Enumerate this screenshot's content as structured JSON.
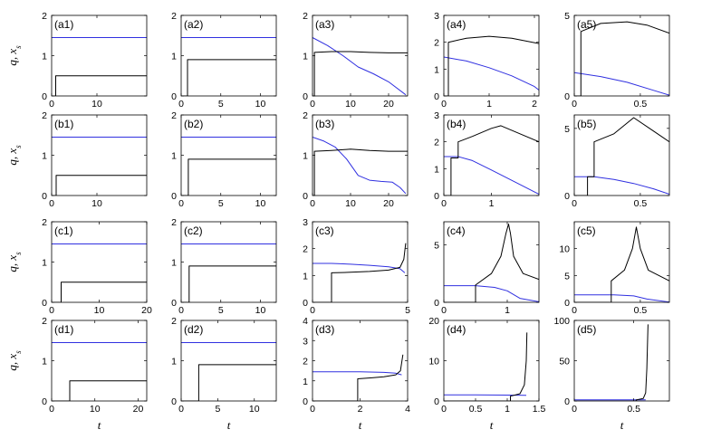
{
  "colors": {
    "q": "#3030e0",
    "xs": "#000000",
    "background": "#ffffff"
  },
  "row_ylabels": [
    "q, x_s",
    "q, x_s",
    "q, x_s",
    "q, x_s"
  ],
  "col_xlabel": "t",
  "chart_data": [
    {
      "type": "line",
      "label": "(a1)",
      "xlim": [
        0,
        21
      ],
      "ylim": [
        0,
        2
      ],
      "xticks": [
        0,
        10
      ],
      "yticks": [
        0,
        1,
        2
      ],
      "series": [
        {
          "name": "q",
          "color": "blue",
          "x": [
            0,
            21
          ],
          "y": [
            1.45,
            1.45
          ]
        },
        {
          "name": "x_s",
          "color": "black",
          "x": [
            0,
            0.9,
            0.9,
            21
          ],
          "y": [
            0,
            0,
            0.5,
            0.5
          ]
        }
      ]
    },
    {
      "type": "line",
      "label": "(a2)",
      "xlim": [
        0,
        12
      ],
      "ylim": [
        0,
        2
      ],
      "xticks": [
        0,
        5,
        10
      ],
      "yticks": [
        0,
        1,
        2
      ],
      "series": [
        {
          "name": "q",
          "color": "blue",
          "x": [
            0,
            12
          ],
          "y": [
            1.45,
            1.45
          ]
        },
        {
          "name": "x_s",
          "color": "black",
          "x": [
            0,
            0.8,
            0.8,
            12
          ],
          "y": [
            0,
            0,
            0.9,
            0.9
          ]
        }
      ]
    },
    {
      "type": "line",
      "label": "(a3)",
      "xlim": [
        0,
        25
      ],
      "ylim": [
        0,
        2
      ],
      "xticks": [
        0,
        10,
        20
      ],
      "yticks": [
        0,
        1,
        2
      ],
      "series": [
        {
          "name": "q",
          "color": "blue",
          "x": [
            0,
            4,
            8,
            12,
            16,
            20,
            24.5
          ],
          "y": [
            1.45,
            1.25,
            1.0,
            0.72,
            0.55,
            0.35,
            0.03
          ]
        },
        {
          "name": "x_s",
          "color": "black",
          "x": [
            0,
            0.5,
            0.5,
            5,
            10,
            15,
            20,
            25
          ],
          "y": [
            0,
            0,
            1.08,
            1.1,
            1.1,
            1.08,
            1.07,
            1.07
          ]
        }
      ]
    },
    {
      "type": "line",
      "label": "(a4)",
      "xlim": [
        0,
        2.1
      ],
      "ylim": [
        0,
        3
      ],
      "xticks": [
        0,
        1,
        2
      ],
      "yticks": [
        0,
        1,
        2,
        3
      ],
      "series": [
        {
          "name": "q",
          "color": "blue",
          "x": [
            0,
            0.5,
            1.0,
            1.5,
            2.0,
            2.1
          ],
          "y": [
            1.45,
            1.3,
            1.05,
            0.75,
            0.35,
            0.22
          ]
        },
        {
          "name": "x_s",
          "color": "black",
          "x": [
            0,
            0.1,
            0.1,
            0.5,
            1.0,
            1.5,
            2.1
          ],
          "y": [
            0,
            0,
            2.0,
            2.15,
            2.22,
            2.15,
            1.95
          ]
        }
      ]
    },
    {
      "type": "line",
      "label": "(a5)",
      "xlim": [
        0,
        0.72
      ],
      "ylim": [
        0,
        5
      ],
      "xticks": [
        0,
        0.5
      ],
      "yticks": [
        0,
        5
      ],
      "series": [
        {
          "name": "q",
          "color": "blue",
          "x": [
            0,
            0.2,
            0.4,
            0.6,
            0.72
          ],
          "y": [
            1.45,
            1.2,
            0.85,
            0.35,
            0.05
          ]
        },
        {
          "name": "x_s",
          "color": "black",
          "x": [
            0,
            0.05,
            0.05,
            0.2,
            0.4,
            0.55,
            0.72
          ],
          "y": [
            0,
            0,
            4.0,
            4.5,
            4.6,
            4.4,
            3.9
          ]
        }
      ]
    },
    {
      "type": "line",
      "label": "(b1)",
      "xlim": [
        0,
        21
      ],
      "ylim": [
        0,
        2
      ],
      "xticks": [
        0,
        10
      ],
      "yticks": [
        0,
        1,
        2
      ],
      "series": [
        {
          "name": "q",
          "color": "blue",
          "x": [
            0,
            21
          ],
          "y": [
            1.45,
            1.45
          ]
        },
        {
          "name": "x_s",
          "color": "black",
          "x": [
            0,
            1.0,
            1.0,
            21
          ],
          "y": [
            0,
            0,
            0.5,
            0.5
          ]
        }
      ]
    },
    {
      "type": "line",
      "label": "(b2)",
      "xlim": [
        0,
        12
      ],
      "ylim": [
        0,
        2
      ],
      "xticks": [
        0,
        5,
        10
      ],
      "yticks": [
        0,
        1,
        2
      ],
      "series": [
        {
          "name": "q",
          "color": "blue",
          "x": [
            0,
            12
          ],
          "y": [
            1.45,
            1.45
          ]
        },
        {
          "name": "x_s",
          "color": "black",
          "x": [
            0,
            0.9,
            0.9,
            12
          ],
          "y": [
            0,
            0,
            0.9,
            0.9
          ]
        }
      ]
    },
    {
      "type": "line",
      "label": "(b3)",
      "xlim": [
        0,
        25
      ],
      "ylim": [
        0,
        2
      ],
      "xticks": [
        0,
        10,
        20
      ],
      "yticks": [
        0,
        1,
        2
      ],
      "series": [
        {
          "name": "q",
          "color": "blue",
          "x": [
            0,
            3,
            6,
            9,
            12,
            15,
            18,
            21,
            23,
            24.5
          ],
          "y": [
            1.45,
            1.35,
            1.2,
            0.9,
            0.5,
            0.38,
            0.35,
            0.33,
            0.2,
            0.05
          ]
        },
        {
          "name": "x_s",
          "color": "black",
          "x": [
            0,
            0.5,
            0.5,
            5,
            10,
            15,
            20,
            25
          ],
          "y": [
            0,
            0,
            1.1,
            1.12,
            1.15,
            1.12,
            1.1,
            1.1
          ]
        }
      ]
    },
    {
      "type": "line",
      "label": "(b4)",
      "xlim": [
        0,
        2.0
      ],
      "ylim": [
        0,
        3
      ],
      "xticks": [
        0,
        1
      ],
      "yticks": [
        0,
        1,
        2,
        3
      ],
      "series": [
        {
          "name": "q",
          "color": "blue",
          "x": [
            0,
            0.3,
            0.6,
            1.0,
            1.5,
            2.0
          ],
          "y": [
            1.45,
            1.45,
            1.3,
            0.95,
            0.5,
            0.05
          ]
        },
        {
          "name": "x_s",
          "color": "black",
          "x": [
            0,
            0.15,
            0.15,
            0.3,
            0.3,
            0.6,
            1.0,
            1.2,
            1.6,
            2.0
          ],
          "y": [
            0,
            0,
            1.4,
            1.4,
            2.0,
            2.2,
            2.5,
            2.6,
            2.3,
            2.0
          ]
        }
      ]
    },
    {
      "type": "line",
      "label": "(b5)",
      "xlim": [
        0,
        0.72
      ],
      "ylim": [
        0,
        6
      ],
      "xticks": [
        0,
        0.5
      ],
      "yticks": [
        0,
        5
      ],
      "series": [
        {
          "name": "q",
          "color": "blue",
          "x": [
            0,
            0.15,
            0.3,
            0.45,
            0.6,
            0.72
          ],
          "y": [
            1.4,
            1.4,
            1.2,
            0.9,
            0.5,
            0.1
          ]
        },
        {
          "name": "x_s",
          "color": "black",
          "x": [
            0,
            0.1,
            0.1,
            0.15,
            0.15,
            0.3,
            0.45,
            0.6,
            0.72
          ],
          "y": [
            0,
            0,
            1.4,
            1.4,
            4.0,
            4.6,
            5.8,
            4.8,
            4.0
          ]
        }
      ]
    },
    {
      "type": "line",
      "label": "(c1)",
      "xlim": [
        0,
        20
      ],
      "ylim": [
        0,
        2
      ],
      "xticks": [
        0,
        10,
        20
      ],
      "yticks": [
        0,
        1,
        2
      ],
      "series": [
        {
          "name": "q",
          "color": "blue",
          "x": [
            0,
            20
          ],
          "y": [
            1.45,
            1.45
          ]
        },
        {
          "name": "x_s",
          "color": "black",
          "x": [
            0,
            2,
            2,
            20
          ],
          "y": [
            0,
            0,
            0.5,
            0.5
          ]
        }
      ]
    },
    {
      "type": "line",
      "label": "(c2)",
      "xlim": [
        0,
        12
      ],
      "ylim": [
        0,
        2
      ],
      "xticks": [
        0,
        5,
        10
      ],
      "yticks": [
        0,
        1,
        2
      ],
      "series": [
        {
          "name": "q",
          "color": "blue",
          "x": [
            0,
            12
          ],
          "y": [
            1.45,
            1.45
          ]
        },
        {
          "name": "x_s",
          "color": "black",
          "x": [
            0,
            1.0,
            1.0,
            12
          ],
          "y": [
            0,
            0,
            0.9,
            0.9
          ]
        }
      ]
    },
    {
      "type": "line",
      "label": "(c3)",
      "xlim": [
        0,
        5
      ],
      "ylim": [
        0,
        3
      ],
      "xticks": [
        0,
        5
      ],
      "yticks": [
        0,
        1,
        2,
        3
      ],
      "series": [
        {
          "name": "q",
          "color": "blue",
          "x": [
            0,
            1,
            2,
            3,
            4,
            4.6,
            4.85
          ],
          "y": [
            1.45,
            1.45,
            1.42,
            1.38,
            1.32,
            1.25,
            1.1
          ]
        },
        {
          "name": "x_s",
          "color": "black",
          "x": [
            0,
            1.0,
            1.0,
            2.0,
            3.0,
            4.0,
            4.6,
            4.8,
            4.9
          ],
          "y": [
            0,
            0,
            1.1,
            1.12,
            1.15,
            1.2,
            1.3,
            1.6,
            2.2
          ]
        }
      ]
    },
    {
      "type": "line",
      "label": "(c4)",
      "xlim": [
        0,
        1.5
      ],
      "ylim": [
        0,
        7
      ],
      "xticks": [
        0,
        1
      ],
      "yticks": [
        0,
        5
      ],
      "series": [
        {
          "name": "q",
          "color": "blue",
          "x": [
            0,
            0.5,
            0.8,
            1.0,
            1.2,
            1.5
          ],
          "y": [
            1.45,
            1.45,
            1.3,
            1.0,
            0.35,
            0.05
          ]
        },
        {
          "name": "x_s",
          "color": "black",
          "x": [
            0,
            0.5,
            0.5,
            0.75,
            0.9,
            0.98,
            1.02,
            1.05,
            1.1,
            1.25,
            1.5
          ],
          "y": [
            0,
            0,
            1.5,
            2.5,
            4.0,
            6.0,
            6.8,
            6.0,
            4.0,
            2.5,
            2.0
          ]
        }
      ]
    },
    {
      "type": "line",
      "label": "(c5)",
      "xlim": [
        0,
        0.72
      ],
      "ylim": [
        0,
        15
      ],
      "xticks": [
        0,
        0.5
      ],
      "yticks": [
        0,
        5,
        10
      ],
      "series": [
        {
          "name": "q",
          "color": "blue",
          "x": [
            0,
            0.3,
            0.45,
            0.55,
            0.72
          ],
          "y": [
            1.4,
            1.4,
            1.2,
            0.6,
            0.05
          ]
        },
        {
          "name": "x_s",
          "color": "black",
          "x": [
            0,
            0.28,
            0.28,
            0.38,
            0.44,
            0.47,
            0.5,
            0.56,
            0.72
          ],
          "y": [
            0,
            0,
            4.0,
            6.0,
            10.0,
            14.0,
            10.0,
            6.0,
            4.0
          ]
        }
      ]
    },
    {
      "type": "line",
      "label": "(d1)",
      "xlim": [
        0,
        22
      ],
      "ylim": [
        0,
        2
      ],
      "xticks": [
        0,
        10,
        20
      ],
      "yticks": [
        0,
        1,
        2
      ],
      "series": [
        {
          "name": "q",
          "color": "blue",
          "x": [
            0,
            22
          ],
          "y": [
            1.45,
            1.45
          ]
        },
        {
          "name": "x_s",
          "color": "black",
          "x": [
            0,
            4.2,
            4.2,
            22
          ],
          "y": [
            0,
            0,
            0.5,
            0.5
          ]
        }
      ]
    },
    {
      "type": "line",
      "label": "(d2)",
      "xlim": [
        0,
        13
      ],
      "ylim": [
        0,
        2
      ],
      "xticks": [
        0,
        5,
        10
      ],
      "yticks": [
        0,
        1,
        2
      ],
      "series": [
        {
          "name": "q",
          "color": "blue",
          "x": [
            0,
            13
          ],
          "y": [
            1.45,
            1.45
          ]
        },
        {
          "name": "x_s",
          "color": "black",
          "x": [
            0,
            2.4,
            2.4,
            13
          ],
          "y": [
            0,
            0,
            0.9,
            0.9
          ]
        }
      ]
    },
    {
      "type": "line",
      "label": "(d3)",
      "xlim": [
        0,
        4
      ],
      "ylim": [
        0,
        4
      ],
      "xticks": [
        0,
        2,
        4
      ],
      "yticks": [
        0,
        1,
        2,
        3,
        4
      ],
      "series": [
        {
          "name": "q",
          "color": "blue",
          "x": [
            0,
            1,
            2,
            3,
            3.5,
            3.75
          ],
          "y": [
            1.45,
            1.45,
            1.45,
            1.42,
            1.38,
            1.3
          ]
        },
        {
          "name": "x_s",
          "color": "black",
          "x": [
            0,
            1.9,
            1.9,
            2.5,
            3.0,
            3.5,
            3.7,
            3.8
          ],
          "y": [
            0,
            0,
            1.1,
            1.15,
            1.2,
            1.3,
            1.5,
            2.3
          ]
        }
      ]
    },
    {
      "type": "line",
      "label": "(d4)",
      "xlim": [
        0,
        1.5
      ],
      "ylim": [
        0,
        20
      ],
      "xticks": [
        0,
        0.5,
        1,
        1.5
      ],
      "yticks": [
        0,
        10,
        20
      ],
      "series": [
        {
          "name": "q",
          "color": "blue",
          "x": [
            0,
            0.5,
            1.0,
            1.3
          ],
          "y": [
            1.5,
            1.5,
            1.45,
            1.4
          ]
        },
        {
          "name": "x_s",
          "color": "black",
          "x": [
            0,
            1.05,
            1.05,
            1.2,
            1.27,
            1.3,
            1.31
          ],
          "y": [
            0,
            0,
            1.2,
            1.8,
            4.0,
            10.0,
            17.0
          ]
        }
      ]
    },
    {
      "type": "line",
      "label": "(d5)",
      "xlim": [
        0,
        0.8
      ],
      "ylim": [
        0,
        100
      ],
      "xticks": [
        0,
        0.5
      ],
      "yticks": [
        0,
        50,
        100
      ],
      "series": [
        {
          "name": "q",
          "color": "blue",
          "x": [
            0,
            0.4,
            0.6
          ],
          "y": [
            1.4,
            1.4,
            1.3
          ]
        },
        {
          "name": "x_s",
          "color": "black",
          "x": [
            0,
            0.52,
            0.52,
            0.58,
            0.6,
            0.61,
            0.62
          ],
          "y": [
            0,
            0,
            1.2,
            3.0,
            10.0,
            40.0,
            95.0
          ]
        }
      ]
    }
  ]
}
